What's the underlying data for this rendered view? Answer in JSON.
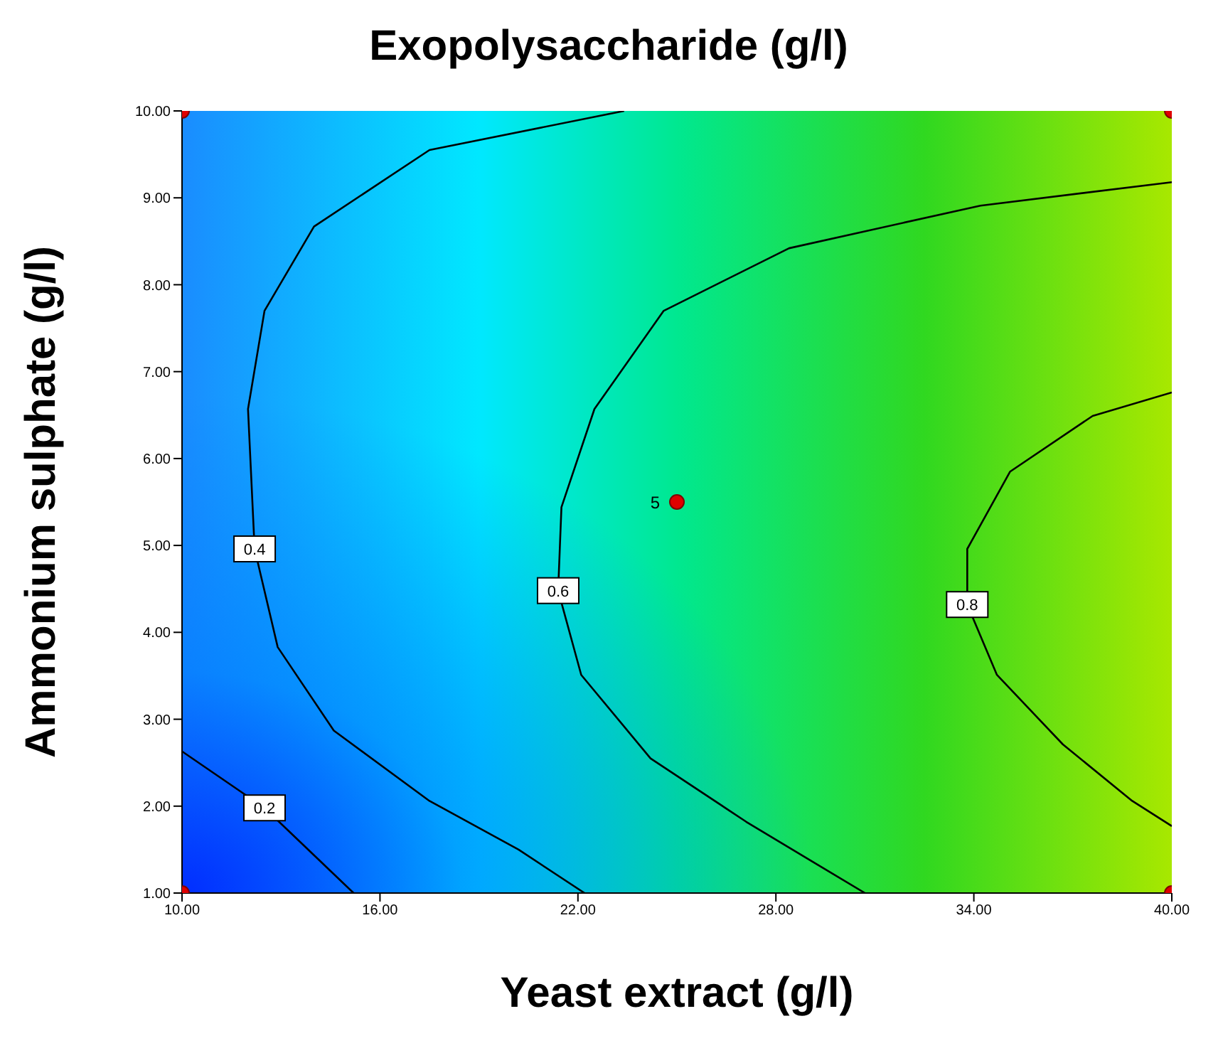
{
  "chart_data": {
    "type": "line",
    "title": "Exopolysaccharide (g/l)",
    "xlabel": "Yeast extract (g/l)",
    "ylabel": "Ammonium sulphate (g/l)",
    "xlim": [
      10,
      40
    ],
    "ylim": [
      1,
      10
    ],
    "xticks": [
      {
        "value": 10,
        "label": "10.00"
      },
      {
        "value": 16,
        "label": "16.00"
      },
      {
        "value": 22,
        "label": "22.00"
      },
      {
        "value": 28,
        "label": "28.00"
      },
      {
        "value": 34,
        "label": "34.00"
      },
      {
        "value": 40,
        "label": "40.00"
      }
    ],
    "yticks": [
      {
        "value": 1,
        "label": "1.00"
      },
      {
        "value": 2,
        "label": "2.00"
      },
      {
        "value": 3,
        "label": "3.00"
      },
      {
        "value": 4,
        "label": "4.00"
      },
      {
        "value": 5,
        "label": "5.00"
      },
      {
        "value": 6,
        "label": "6.00"
      },
      {
        "value": 7,
        "label": "7.00"
      },
      {
        "value": 8,
        "label": "8.00"
      },
      {
        "value": 9,
        "label": "9.00"
      },
      {
        "value": 10,
        "label": "10.00"
      }
    ],
    "grid": false,
    "legend": false,
    "marker": "none",
    "line_style": "solid",
    "series": [
      {
        "name": "0.2",
        "color": "#000000",
        "x": [
          10,
          12.5,
          15.2
        ],
        "values": [
          2.63,
          1.98,
          1
        ]
      },
      {
        "name": "0.4",
        "color": "#000000",
        "x": [
          23.4,
          17.5,
          14.0,
          12.5,
          12.0,
          12.2,
          12.9,
          14.6,
          17.5,
          20.2,
          22.2
        ],
        "values": [
          10,
          9.55,
          8.67,
          7.7,
          6.57,
          4.96,
          3.83,
          2.87,
          2.06,
          1.5,
          1
        ]
      },
      {
        "name": "0.6",
        "color": "#000000",
        "x": [
          40,
          34.2,
          28.4,
          24.6,
          22.5,
          21.5,
          21.4,
          22.1,
          24.2,
          27.1,
          29.2,
          30.7
        ],
        "values": [
          9.18,
          8.91,
          8.42,
          7.7,
          6.57,
          5.44,
          4.48,
          3.51,
          2.55,
          1.82,
          1.34,
          1
        ]
      },
      {
        "name": "0.8",
        "color": "#000000",
        "x": [
          40,
          37.6,
          35.1,
          33.8,
          33.8,
          34.7,
          36.7,
          38.8,
          40
        ],
        "values": [
          6.76,
          6.49,
          5.85,
          4.96,
          4.32,
          3.51,
          2.71,
          2.06,
          1.77
        ]
      },
      {
        "type": "scatter",
        "marker": "circle",
        "color": "#e00000",
        "x": [
          10,
          10,
          40,
          40,
          25
        ],
        "values": [
          1,
          10,
          1,
          10,
          5.5
        ]
      }
    ],
    "annotations": [
      {
        "text": "5",
        "x": 25,
        "y": 5.5
      }
    ]
  }
}
